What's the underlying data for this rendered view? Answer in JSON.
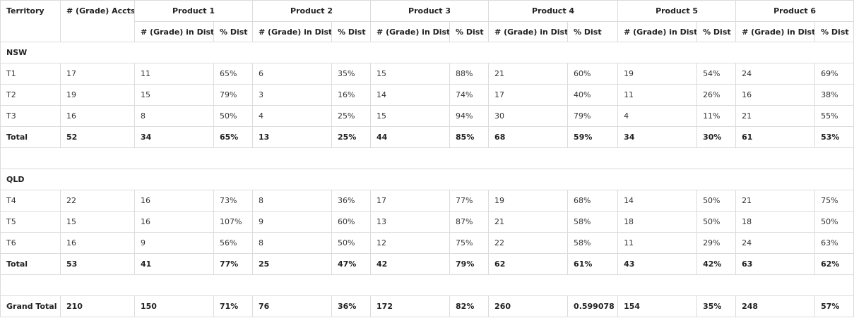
{
  "headers": {
    "territory": "Territory",
    "accts": "# (Grade) Accts",
    "products": [
      "Product 1",
      "Product 2",
      "Product 3",
      "Product 4",
      "Product 5",
      "Product 6"
    ],
    "sub_in_dist": "# (Grade) in Dist",
    "sub_pct": "% Dist"
  },
  "regions": [
    {
      "name": "NSW",
      "rows": [
        {
          "territory": "T1",
          "accts": "17",
          "cells": [
            "11",
            "65%",
            "6",
            "35%",
            "15",
            "88%",
            "21",
            "60%",
            "19",
            "54%",
            "24",
            "69%"
          ]
        },
        {
          "territory": "T2",
          "accts": "19",
          "cells": [
            "15",
            "79%",
            "3",
            "16%",
            "14",
            "74%",
            "17",
            "40%",
            "11",
            "26%",
            "16",
            "38%"
          ]
        },
        {
          "territory": "T3",
          "accts": "16",
          "cells": [
            "8",
            "50%",
            "4",
            "25%",
            "15",
            "94%",
            "30",
            "79%",
            "4",
            "11%",
            "21",
            "55%"
          ]
        }
      ],
      "total": {
        "territory": "Total",
        "accts": "52",
        "cells": [
          "34",
          "65%",
          "13",
          "25%",
          "44",
          "85%",
          "68",
          "59%",
          "34",
          "30%",
          "61",
          "53%"
        ]
      }
    },
    {
      "name": "QLD",
      "rows": [
        {
          "territory": "T4",
          "accts": "22",
          "cells": [
            "16",
            "73%",
            "8",
            "36%",
            "17",
            "77%",
            "19",
            "68%",
            "14",
            "50%",
            "21",
            "75%"
          ]
        },
        {
          "territory": "T5",
          "accts": "15",
          "cells": [
            "16",
            "107%",
            "9",
            "60%",
            "13",
            "87%",
            "21",
            "58%",
            "18",
            "50%",
            "18",
            "50%"
          ]
        },
        {
          "territory": "T6",
          "accts": "16",
          "cells": [
            "9",
            "56%",
            "8",
            "50%",
            "12",
            "75%",
            "22",
            "58%",
            "11",
            "29%",
            "24",
            "63%"
          ]
        }
      ],
      "total": {
        "territory": "Total",
        "accts": "53",
        "cells": [
          "41",
          "77%",
          "25",
          "47%",
          "42",
          "79%",
          "62",
          "61%",
          "43",
          "42%",
          "63",
          "62%"
        ]
      }
    }
  ],
  "grand_total": {
    "territory": "Grand Total",
    "accts": "210",
    "cells": [
      "150",
      "71%",
      "76",
      "36%",
      "172",
      "82%",
      "260",
      "0.599078",
      "154",
      "35%",
      "248",
      "57%"
    ]
  }
}
